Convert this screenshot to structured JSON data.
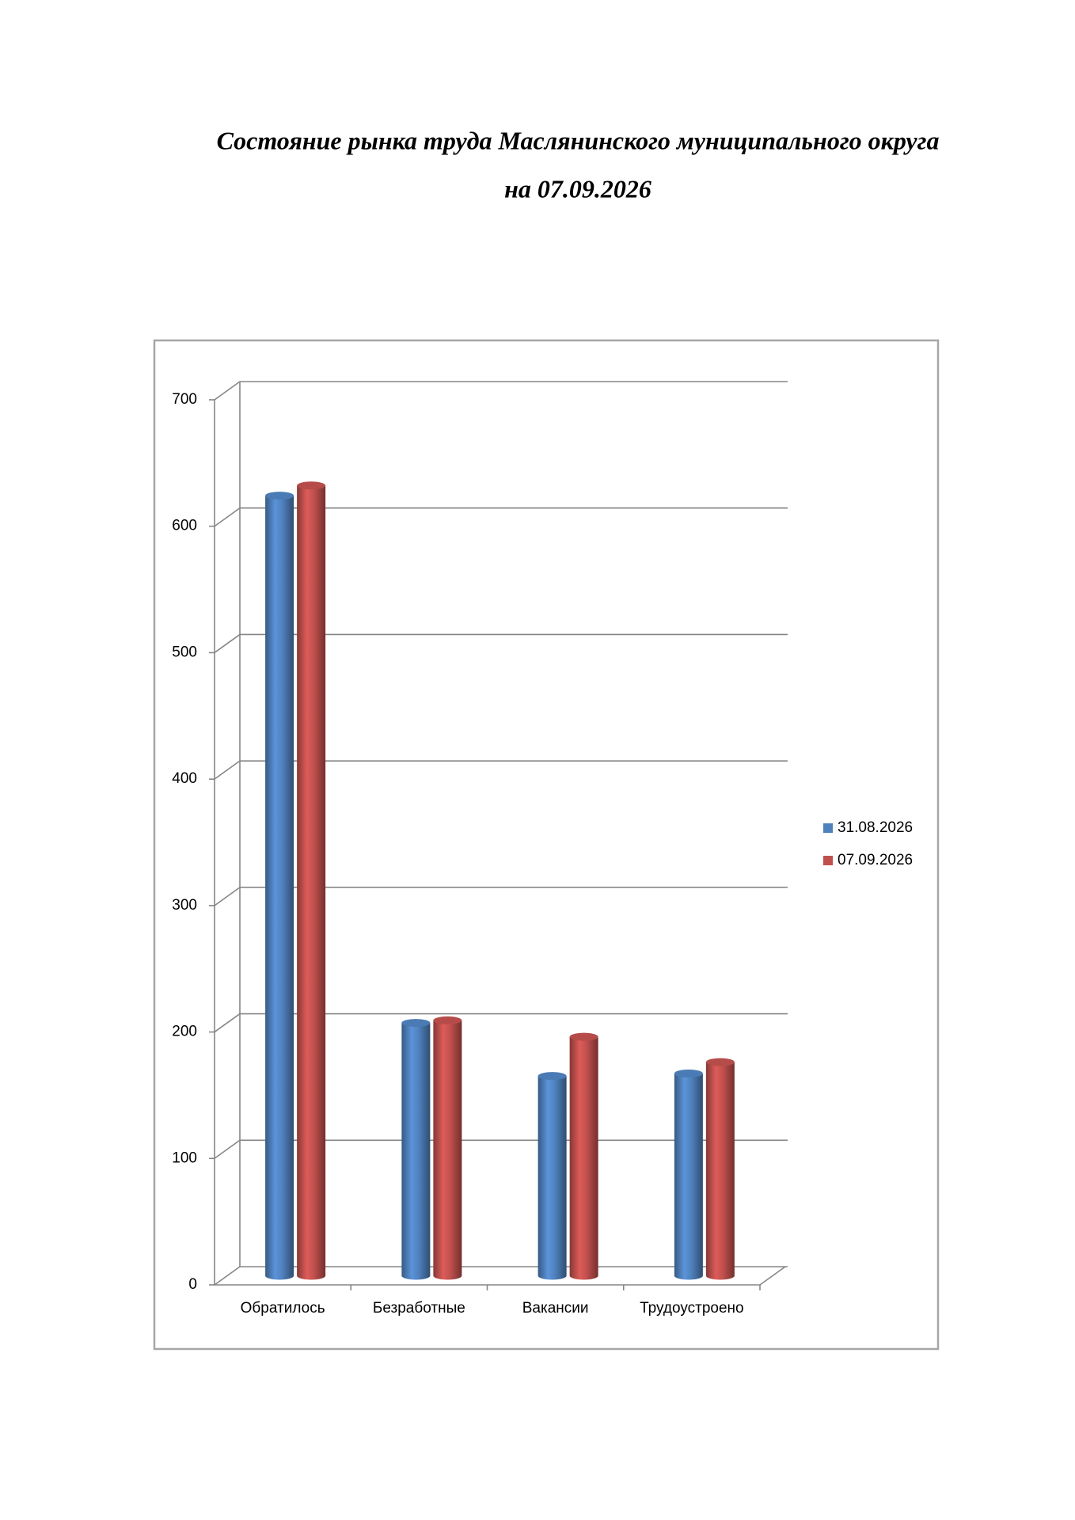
{
  "chart_data": {
    "type": "bar3d",
    "title": "Состояние рынка труда Маслянинского муниципального округа",
    "subtitle": "на 07.09.2026",
    "categories": [
      "Обратилось",
      "Безработные",
      "Вакансии",
      "Трудоустроено"
    ],
    "series": [
      {
        "name": "31.08.2026",
        "color": "#4f81bd",
        "values": [
          617,
          200,
          158,
          160
        ]
      },
      {
        "name": "07.09.2026",
        "color": "#c0504d",
        "values": [
          625,
          202,
          189,
          169
        ]
      }
    ],
    "ylim": [
      0,
      700
    ],
    "yticks": [
      0,
      100,
      200,
      300,
      400,
      500,
      600,
      700
    ],
    "grid": true,
    "legend": "right"
  }
}
